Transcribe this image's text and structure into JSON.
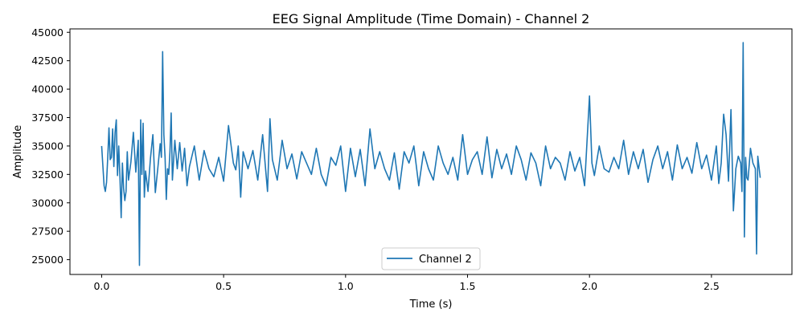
{
  "chart_data": {
    "type": "line",
    "title": "EEG Signal Amplitude (Time Domain) - Channel 2",
    "xlabel": "Time (s)",
    "ylabel": "Amplitude",
    "xlim": [
      -0.13,
      2.83
    ],
    "ylim": [
      23700,
      45300
    ],
    "xticks": [
      0.0,
      0.5,
      1.0,
      1.5,
      2.0,
      2.5
    ],
    "xtick_labels": [
      "0.0",
      "0.5",
      "1.0",
      "1.5",
      "2.0",
      "2.5"
    ],
    "yticks": [
      25000,
      27500,
      30000,
      32500,
      35000,
      37500,
      40000,
      42500,
      45000
    ],
    "ytick_labels": [
      "25000",
      "27500",
      "30000",
      "32500",
      "35000",
      "37500",
      "40000",
      "42500",
      "45000"
    ],
    "grid": false,
    "legend": {
      "position": "lower center",
      "entries": [
        "Channel 2"
      ]
    },
    "series": [
      {
        "name": "Channel 2",
        "color": "#1f77b4",
        "x": [
          0.0,
          0.01,
          0.015,
          0.02,
          0.025,
          0.03,
          0.035,
          0.04,
          0.045,
          0.05,
          0.055,
          0.06,
          0.065,
          0.07,
          0.075,
          0.08,
          0.085,
          0.09,
          0.095,
          0.1,
          0.105,
          0.11,
          0.12,
          0.13,
          0.14,
          0.15,
          0.155,
          0.16,
          0.165,
          0.17,
          0.175,
          0.18,
          0.19,
          0.2,
          0.21,
          0.22,
          0.23,
          0.24,
          0.245,
          0.25,
          0.255,
          0.26,
          0.265,
          0.27,
          0.275,
          0.28,
          0.285,
          0.29,
          0.3,
          0.31,
          0.32,
          0.33,
          0.34,
          0.35,
          0.36,
          0.38,
          0.4,
          0.42,
          0.44,
          0.46,
          0.48,
          0.5,
          0.52,
          0.54,
          0.55,
          0.56,
          0.57,
          0.58,
          0.6,
          0.62,
          0.64,
          0.66,
          0.68,
          0.69,
          0.7,
          0.72,
          0.74,
          0.76,
          0.78,
          0.8,
          0.82,
          0.84,
          0.86,
          0.88,
          0.9,
          0.92,
          0.94,
          0.96,
          0.98,
          1.0,
          1.02,
          1.04,
          1.06,
          1.08,
          1.1,
          1.12,
          1.14,
          1.16,
          1.18,
          1.2,
          1.22,
          1.24,
          1.26,
          1.28,
          1.3,
          1.32,
          1.34,
          1.36,
          1.38,
          1.4,
          1.42,
          1.44,
          1.46,
          1.48,
          1.5,
          1.52,
          1.54,
          1.56,
          1.58,
          1.6,
          1.62,
          1.64,
          1.66,
          1.68,
          1.7,
          1.72,
          1.74,
          1.76,
          1.78,
          1.8,
          1.82,
          1.84,
          1.86,
          1.88,
          1.9,
          1.92,
          1.94,
          1.96,
          1.98,
          2.0,
          2.01,
          2.02,
          2.04,
          2.06,
          2.08,
          2.1,
          2.12,
          2.14,
          2.16,
          2.18,
          2.2,
          2.22,
          2.24,
          2.26,
          2.28,
          2.3,
          2.32,
          2.34,
          2.36,
          2.38,
          2.4,
          2.42,
          2.44,
          2.46,
          2.48,
          2.5,
          2.52,
          2.53,
          2.54,
          2.55,
          2.56,
          2.57,
          2.58,
          2.59,
          2.6,
          2.61,
          2.62,
          2.625,
          2.63,
          2.635,
          2.64,
          2.645,
          2.65,
          2.66,
          2.67,
          2.68,
          2.685,
          2.69,
          2.7
        ],
        "values": [
          35000,
          31500,
          31000,
          31800,
          34000,
          36600,
          33800,
          34000,
          36500,
          33200,
          36200,
          37300,
          32400,
          35000,
          32300,
          28700,
          33500,
          31300,
          30200,
          31000,
          34500,
          32000,
          33600,
          36200,
          32700,
          35500,
          24500,
          37300,
          32500,
          37000,
          30500,
          32800,
          31000,
          33900,
          36000,
          30900,
          33000,
          35200,
          34000,
          43300,
          36000,
          34000,
          30300,
          33000,
          32500,
          34500,
          37900,
          32000,
          35500,
          33000,
          35300,
          32800,
          34800,
          31500,
          33200,
          35000,
          32000,
          34600,
          33000,
          32300,
          34000,
          31900,
          36800,
          33500,
          32900,
          35000,
          30500,
          34500,
          33000,
          34600,
          32000,
          36000,
          31000,
          37400,
          33800,
          32000,
          35500,
          33000,
          34300,
          32100,
          34500,
          33500,
          32500,
          34800,
          32500,
          31500,
          34000,
          33300,
          35000,
          31000,
          34800,
          32300,
          34700,
          31500,
          36500,
          33000,
          34500,
          33000,
          32000,
          34400,
          31200,
          34500,
          33500,
          35000,
          31500,
          34500,
          33000,
          32000,
          35000,
          33500,
          32500,
          34000,
          32000,
          36000,
          32500,
          33800,
          34500,
          32500,
          35800,
          32200,
          34700,
          33000,
          34300,
          32500,
          35000,
          33800,
          32000,
          34400,
          33500,
          31500,
          35000,
          33000,
          34000,
          33500,
          32000,
          34500,
          32800,
          34000,
          31500,
          39400,
          33500,
          32400,
          35000,
          33000,
          32700,
          34000,
          33000,
          35500,
          32500,
          34500,
          33000,
          34700,
          31800,
          33800,
          35000,
          33000,
          34500,
          32000,
          35100,
          33000,
          34000,
          32600,
          35300,
          33000,
          34200,
          32000,
          35000,
          31700,
          33500,
          37800,
          36000,
          31900,
          38200,
          29300,
          33000,
          34100,
          33500,
          31000,
          44100,
          27000,
          34000,
          32200,
          32000,
          34800,
          33500,
          33000,
          25500,
          34100,
          32200
        ]
      }
    ]
  }
}
